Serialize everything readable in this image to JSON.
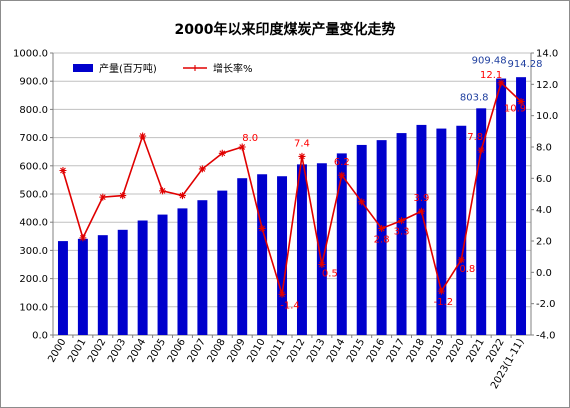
{
  "chart_data": {
    "type": "bar",
    "title": "2000年以来印度煤炭产量变化走势",
    "categories": [
      "2000",
      "2001",
      "2002",
      "2003",
      "2004",
      "2005",
      "2006",
      "2007",
      "2008",
      "2009",
      "2010",
      "2011",
      "2012",
      "2013",
      "2014",
      "2015",
      "2016",
      "2017",
      "2018",
      "2019",
      "2020",
      "2021",
      "2022",
      "2023(1-11)"
    ],
    "series": [
      {
        "name": "产量(百万吨)",
        "type": "bar",
        "axis": "left",
        "color": "#0000cc",
        "values": [
          333,
          341,
          354,
          373,
          406,
          427,
          449,
          478,
          512,
          556,
          570,
          563,
          605,
          609,
          644,
          674,
          691,
          716,
          745,
          732,
          742,
          803.8,
          909.48,
          914.28
        ]
      },
      {
        "name": "增长率%",
        "type": "line",
        "axis": "right",
        "color": "#e00000",
        "values": [
          6.5,
          2.2,
          4.8,
          4.9,
          8.7,
          5.2,
          4.9,
          6.6,
          7.6,
          8.0,
          2.8,
          -1.4,
          7.4,
          0.5,
          6.2,
          4.5,
          2.8,
          3.3,
          3.9,
          -1.2,
          0.8,
          7.8,
          12.1,
          10.9
        ]
      }
    ],
    "bar_labels": [
      {
        "index": 21,
        "text": "803.8"
      },
      {
        "index": 22,
        "text": "909.48"
      },
      {
        "index": 23,
        "text": "914.28"
      }
    ],
    "line_labels": [
      {
        "index": 9,
        "text": "8.0"
      },
      {
        "index": 11,
        "text": "-1.4"
      },
      {
        "index": 12,
        "text": "7.4"
      },
      {
        "index": 13,
        "text": "0.5"
      },
      {
        "index": 14,
        "text": "6.2"
      },
      {
        "index": 16,
        "text": "2.8"
      },
      {
        "index": 17,
        "text": "3.3"
      },
      {
        "index": 18,
        "text": "3.9"
      },
      {
        "index": 19,
        "text": "-1.2"
      },
      {
        "index": 20,
        "text": "0.8"
      },
      {
        "index": 21,
        "text": "7.8"
      },
      {
        "index": 22,
        "text": "12.1"
      },
      {
        "index": 23,
        "text": "10.9"
      }
    ],
    "y_left": {
      "min": 0,
      "max": 1000,
      "step": 100,
      "tick_labels": [
        "0.0",
        "100.0",
        "200.0",
        "300.0",
        "400.0",
        "500.0",
        "600.0",
        "700.0",
        "800.0",
        "900.0",
        "1000.0"
      ]
    },
    "y_right": {
      "min": -4,
      "max": 14,
      "step": 2,
      "tick_labels": [
        "-4.0",
        "-2.0",
        "0.0",
        "2.0",
        "4.0",
        "6.0",
        "8.0",
        "10.0",
        "12.0",
        "14.0"
      ]
    },
    "grid": true,
    "legend_position": "top-left"
  }
}
